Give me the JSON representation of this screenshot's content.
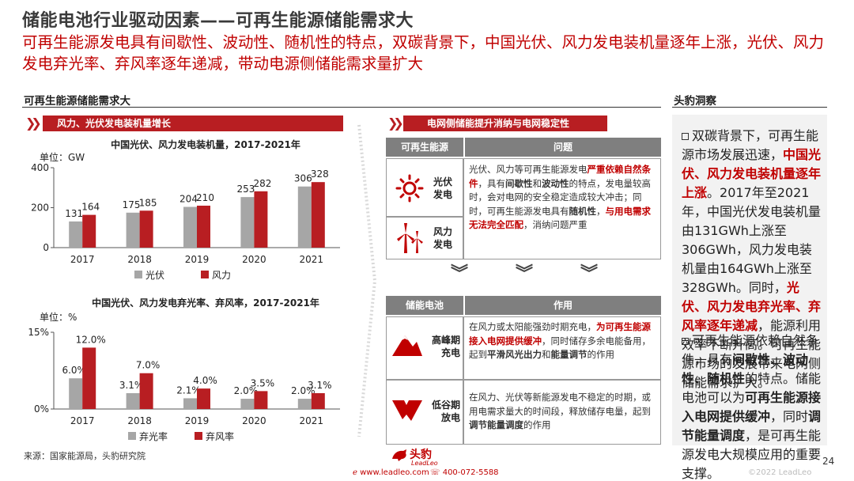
{
  "header": {
    "title": "储能电池行业驱动因素——可再生能源储能需求大",
    "subtitle": "可再生能源发电具有间歇性、波动性、随机性的特点，双碳背景下，中国光伏、风力发电装机量逐年上涨，光伏、风力发电弃光率、弃风率逐年递减，带动电源侧储能需求量扩大"
  },
  "left_section": {
    "label": "可再生能源储能需求大",
    "ribbon1": "风力、光伏发电装机量增长",
    "ribbon2": "电网侧储能提升消纳与电网稳定性"
  },
  "chart_data": [
    {
      "type": "bar",
      "title": "中国光伏、风力发电装机量，2017-2021年",
      "unit": "单位：GW",
      "categories": [
        "2017",
        "2018",
        "2019",
        "2020",
        "2021"
      ],
      "series": [
        {
          "name": "光伏",
          "values": [
            131,
            175,
            204,
            253,
            306
          ],
          "labels": [
            "131",
            "175",
            "204",
            "253",
            "306"
          ],
          "color": "#a6a6a6"
        },
        {
          "name": "风力",
          "values": [
            164,
            185,
            210,
            282,
            328
          ],
          "labels": [
            "164",
            "185",
            "210",
            "282",
            "328"
          ],
          "color": "#b81e22"
        }
      ],
      "ylim": [
        0,
        400
      ],
      "yticks": [
        0,
        200,
        400
      ],
      "ytick_labels": [
        "0",
        "200",
        "400"
      ],
      "grid": false,
      "legend": "bottom"
    },
    {
      "type": "bar",
      "title": "中国光伏、风力发电弃光率、弃风率，2017-2021年",
      "unit": "单位：%",
      "categories": [
        "2017",
        "2018",
        "2019",
        "2020",
        "2021"
      ],
      "series": [
        {
          "name": "弃光率",
          "values": [
            6.0,
            3.1,
            2.1,
            2.0,
            2.0
          ],
          "labels": [
            "6.0%",
            "3.1%",
            "2.1%",
            "2.0%",
            "2.0%"
          ],
          "color": "#a6a6a6"
        },
        {
          "name": "弃风率",
          "values": [
            12.0,
            7.0,
            4.0,
            3.5,
            3.1
          ],
          "labels": [
            "12.0%",
            "7.0%",
            "4.0%",
            "3.5%",
            "3.1%"
          ],
          "color": "#b81e22"
        }
      ],
      "ylim": [
        0,
        15
      ],
      "yticks": [
        0,
        15
      ],
      "ytick_labels": [
        "0%",
        "15%"
      ],
      "grid": false,
      "legend": "bottom"
    }
  ],
  "table1": {
    "col1": "可再生能源",
    "col2": "问题",
    "row1_label": "光伏发电",
    "row2_label": "风力发电",
    "desc": [
      {
        "t": "光伏、风力等可再生能源发电",
        "s": "n"
      },
      {
        "t": "严重依赖自然条件",
        "s": "r"
      },
      {
        "t": "，具有",
        "s": "n"
      },
      {
        "t": "间歇性",
        "s": "b"
      },
      {
        "t": "和",
        "s": "n"
      },
      {
        "t": "波动性",
        "s": "b"
      },
      {
        "t": "的特点，发电量较高时，会对电网的安全稳定造成较大冲击；同时，可再生能源发电具有",
        "s": "n"
      },
      {
        "t": "随机性",
        "s": "b"
      },
      {
        "t": "，",
        "s": "n"
      },
      {
        "t": "与用电需求无法完全匹配",
        "s": "r"
      },
      {
        "t": "，消纳问题严重",
        "s": "n"
      }
    ]
  },
  "table2": {
    "col1": "储能电池",
    "col2": "作用",
    "row1_label": "高峰期充电",
    "row2_label": "低谷期放电",
    "row1_desc": [
      {
        "t": "在风力或太阳能强劲时期充电，",
        "s": "n"
      },
      {
        "t": "为可再生能源接入电网提供缓冲",
        "s": "r"
      },
      {
        "t": "，同时储存多余电能备用，起到",
        "s": "n"
      },
      {
        "t": "平滑风光出力",
        "s": "b"
      },
      {
        "t": "和",
        "s": "n"
      },
      {
        "t": "能量调节",
        "s": "b"
      },
      {
        "t": "的作用",
        "s": "n"
      }
    ],
    "row2_desc": [
      {
        "t": "在风力、光伏等新能源发电不稳定的时期，或用电需求量大的时间段，释放储存电量，起到",
        "s": "n"
      },
      {
        "t": "调节能量调度",
        "s": "b"
      },
      {
        "t": "的作用",
        "s": "n"
      }
    ]
  },
  "insight": {
    "label": "头豹洞察",
    "p1": [
      {
        "t": "双碳背景下，可再生能源市场发展迅速，",
        "s": "n"
      },
      {
        "t": "中国光伏、风力发电装机量逐年上涨",
        "s": "r"
      },
      {
        "t": "。2017年至2021年，中国光伏发电装机量由131GWh上涨至306GWh，风力发电装机量由164GWh上涨至328GWh。同时，",
        "s": "n"
      },
      {
        "t": "光伏、风力发电弃光率、弃风率逐年递减",
        "s": "r"
      },
      {
        "t": "，能源利用效率不断升高。可再生能源市场的发展带来电网侧储能需求扩大。",
        "s": "n"
      }
    ],
    "p2": [
      {
        "t": "可再生能源依赖自然条件，具有",
        "s": "n"
      },
      {
        "t": "间歇性、波动性、随机性",
        "s": "b"
      },
      {
        "t": "的特点。储能电池可以为",
        "s": "n"
      },
      {
        "t": "可再生能源接入电网提供缓冲",
        "s": "b"
      },
      {
        "t": "，同时",
        "s": "n"
      },
      {
        "t": "调节能量调度",
        "s": "b"
      },
      {
        "t": "，是可再生能源发电大规模应用的重要支撑。",
        "s": "n"
      }
    ]
  },
  "footer": {
    "source": "来源：国家能源局，头豹研究院",
    "logo_text": "头豹",
    "logo_sub": "LeadLeo",
    "website": "www.leadleo.com",
    "phone": "400-072-5588",
    "copyright": "©2022 LeadLeo",
    "page_number": "24"
  }
}
